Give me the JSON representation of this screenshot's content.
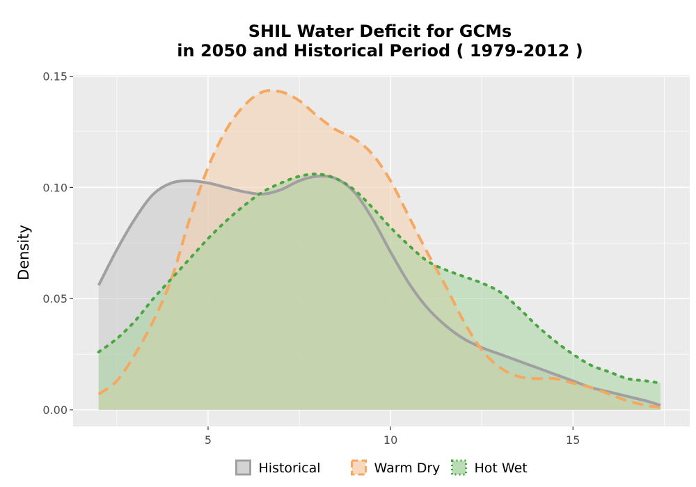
{
  "chart_data": {
    "type": "area",
    "title_lines": [
      "SHIL  Water Deficit for GCMs",
      "in 2050 and Historical Period ( 1979-2012 )"
    ],
    "xlabel": "",
    "ylabel": "Density",
    "xlim": [
      1.3,
      18.2
    ],
    "ylim": [
      -0.0075,
      0.1505
    ],
    "x_ticks": [
      5,
      10,
      15
    ],
    "x_tick_labels": [
      "5",
      "10",
      "15"
    ],
    "y_ticks": [
      0.0,
      0.05,
      0.1,
      0.15
    ],
    "y_tick_labels": [
      "0.00",
      "0.05",
      "0.10",
      "0.15"
    ],
    "grid": true,
    "legend_position": "bottom",
    "series": [
      {
        "name": "Historical",
        "line_color": "#a0a0a0",
        "fill_color": "#c8c8c8",
        "line_style": "solid",
        "points": [
          [
            2.0,
            0.056
          ],
          [
            2.5,
            0.072
          ],
          [
            3.0,
            0.086
          ],
          [
            3.5,
            0.097
          ],
          [
            4.0,
            0.102
          ],
          [
            4.5,
            0.103
          ],
          [
            5.0,
            0.102
          ],
          [
            5.5,
            0.1
          ],
          [
            6.0,
            0.098
          ],
          [
            6.5,
            0.097
          ],
          [
            7.0,
            0.099
          ],
          [
            7.5,
            0.103
          ],
          [
            8.0,
            0.105
          ],
          [
            8.5,
            0.104
          ],
          [
            9.0,
            0.098
          ],
          [
            9.5,
            0.086
          ],
          [
            10.0,
            0.071
          ],
          [
            10.5,
            0.057
          ],
          [
            11.0,
            0.046
          ],
          [
            11.5,
            0.038
          ],
          [
            12.0,
            0.032
          ],
          [
            12.5,
            0.028
          ],
          [
            13.0,
            0.025
          ],
          [
            13.5,
            0.022
          ],
          [
            14.0,
            0.019
          ],
          [
            14.5,
            0.016
          ],
          [
            15.0,
            0.013
          ],
          [
            15.5,
            0.01
          ],
          [
            16.0,
            0.008
          ],
          [
            16.5,
            0.006
          ],
          [
            17.0,
            0.004
          ],
          [
            17.4,
            0.002
          ]
        ]
      },
      {
        "name": "Warm Dry",
        "line_color": "#f5a860",
        "fill_color": "#f6cfad",
        "line_style": "dashed",
        "points": [
          [
            2.0,
            0.007
          ],
          [
            2.5,
            0.013
          ],
          [
            3.0,
            0.025
          ],
          [
            3.5,
            0.04
          ],
          [
            4.0,
            0.059
          ],
          [
            4.5,
            0.086
          ],
          [
            5.0,
            0.109
          ],
          [
            5.5,
            0.126
          ],
          [
            6.0,
            0.137
          ],
          [
            6.5,
            0.143
          ],
          [
            7.0,
            0.143
          ],
          [
            7.5,
            0.139
          ],
          [
            8.0,
            0.132
          ],
          [
            8.5,
            0.126
          ],
          [
            9.0,
            0.122
          ],
          [
            9.5,
            0.115
          ],
          [
            10.0,
            0.103
          ],
          [
            10.5,
            0.087
          ],
          [
            11.0,
            0.071
          ],
          [
            11.5,
            0.056
          ],
          [
            12.0,
            0.04
          ],
          [
            12.5,
            0.027
          ],
          [
            13.0,
            0.019
          ],
          [
            13.5,
            0.015
          ],
          [
            14.0,
            0.014
          ],
          [
            14.5,
            0.014
          ],
          [
            15.0,
            0.012
          ],
          [
            15.5,
            0.01
          ],
          [
            16.0,
            0.007
          ],
          [
            16.5,
            0.004
          ],
          [
            17.0,
            0.002
          ],
          [
            17.4,
            0.001
          ]
        ]
      },
      {
        "name": "Hot Wet",
        "line_color": "#4aa642",
        "fill_color": "#a8d3a1",
        "line_style": "dotted",
        "points": [
          [
            2.0,
            0.026
          ],
          [
            2.5,
            0.032
          ],
          [
            3.0,
            0.04
          ],
          [
            3.5,
            0.05
          ],
          [
            4.0,
            0.059
          ],
          [
            4.5,
            0.068
          ],
          [
            5.0,
            0.077
          ],
          [
            5.5,
            0.085
          ],
          [
            6.0,
            0.092
          ],
          [
            6.5,
            0.098
          ],
          [
            7.0,
            0.102
          ],
          [
            7.5,
            0.105
          ],
          [
            8.0,
            0.106
          ],
          [
            8.5,
            0.104
          ],
          [
            9.0,
            0.099
          ],
          [
            9.5,
            0.091
          ],
          [
            10.0,
            0.082
          ],
          [
            10.5,
            0.074
          ],
          [
            11.0,
            0.067
          ],
          [
            11.5,
            0.063
          ],
          [
            12.0,
            0.06
          ],
          [
            12.5,
            0.057
          ],
          [
            13.0,
            0.053
          ],
          [
            13.5,
            0.046
          ],
          [
            14.0,
            0.038
          ],
          [
            14.5,
            0.031
          ],
          [
            15.0,
            0.025
          ],
          [
            15.5,
            0.02
          ],
          [
            16.0,
            0.017
          ],
          [
            16.5,
            0.014
          ],
          [
            17.0,
            0.013
          ],
          [
            17.4,
            0.012
          ]
        ]
      }
    ]
  }
}
